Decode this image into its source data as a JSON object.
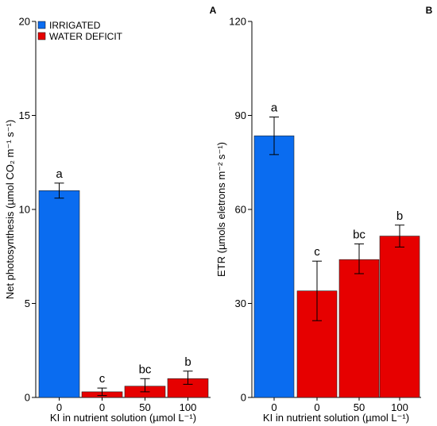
{
  "colors": {
    "irrigated": "#0a6cf0",
    "water_deficit": "#e60000"
  },
  "legend": [
    {
      "label": "IRRIGATED",
      "color": "#0a6cf0"
    },
    {
      "label": "WATER DEFICIT",
      "color": "#e60000"
    }
  ],
  "chart_data": [
    {
      "type": "bar",
      "panel": "A",
      "categories": [
        "0",
        "0",
        "50",
        "100"
      ],
      "groups": [
        "IRRIGATED",
        "WATER DEFICIT",
        "WATER DEFICIT",
        "WATER DEFICIT"
      ],
      "values": [
        11.0,
        0.3,
        0.6,
        1.0
      ],
      "error_low": [
        10.6,
        0.1,
        0.3,
        0.7
      ],
      "error_high": [
        11.4,
        0.5,
        1.0,
        1.4
      ],
      "significance": [
        "a",
        "c",
        "bc",
        "b"
      ],
      "xlabel": "KI in nutrient solution (µmol L⁻¹)",
      "ylabel": "Net photosynthesis (µmol CO₂ m⁻¹ s⁻¹)",
      "ylim": [
        0,
        20
      ],
      "yticks": [
        "0",
        "5",
        "10",
        "15",
        "20"
      ],
      "legend_position": "top-left",
      "grid": false
    },
    {
      "type": "bar",
      "panel": "B",
      "categories": [
        "0",
        "0",
        "50",
        "100"
      ],
      "groups": [
        "IRRIGATED",
        "WATER DEFICIT",
        "WATER DEFICIT",
        "WATER DEFICIT"
      ],
      "values": [
        83.5,
        34,
        44,
        51.5
      ],
      "error_low": [
        77.5,
        24.5,
        39.5,
        48
      ],
      "error_high": [
        89.5,
        43.5,
        49,
        55
      ],
      "significance": [
        "a",
        "c",
        "bc",
        "b"
      ],
      "xlabel": "KI in nutrient solution (µmol L⁻¹)",
      "ylabel": "ETR (µmols eletrons m⁻² s⁻¹)",
      "ylim": [
        0,
        120
      ],
      "yticks": [
        "0",
        "30",
        "60",
        "90",
        "120"
      ],
      "grid": false
    }
  ]
}
